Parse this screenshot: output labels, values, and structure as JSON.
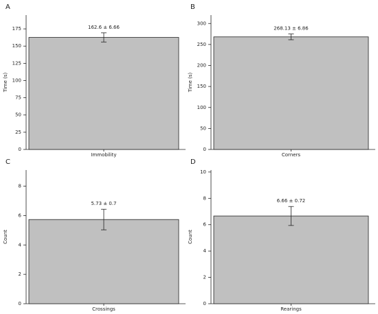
{
  "chart_data": [
    {
      "type": "bar",
      "panel": "A",
      "ylabel": "Time (s)",
      "categories": [
        "Immobility"
      ],
      "values": [
        162.6
      ],
      "error": [
        6.66
      ],
      "value_labels": [
        "162.6 ± 6.66"
      ],
      "color": "#c0c0c0",
      "ylim": [
        0,
        195
      ],
      "yticks": [
        0,
        25,
        50,
        75,
        100,
        125,
        150,
        175
      ]
    },
    {
      "type": "bar",
      "panel": "B",
      "ylabel": "Time (s)",
      "categories": [
        "Corners"
      ],
      "values": [
        268.13
      ],
      "error": [
        6.86
      ],
      "value_labels": [
        "268.13 ± 6.86"
      ],
      "color": "#c0c0c0",
      "ylim": [
        0,
        320
      ],
      "yticks": [
        0,
        50,
        100,
        150,
        200,
        250,
        300
      ]
    },
    {
      "type": "bar",
      "panel": "C",
      "ylabel": "Count",
      "categories": [
        "Crossings"
      ],
      "values": [
        5.73
      ],
      "error": [
        0.7
      ],
      "value_labels": [
        "5.73 ± 0.7"
      ],
      "color": "#c0c0c0",
      "ylim": [
        0,
        9.1
      ],
      "yticks": [
        0,
        2,
        4,
        6,
        8
      ]
    },
    {
      "type": "bar",
      "panel": "D",
      "ylabel": "Count",
      "categories": [
        "Rearings"
      ],
      "values": [
        6.66
      ],
      "error": [
        0.72
      ],
      "value_labels": [
        "6.66 ± 0.72"
      ],
      "color": "#c0c0c0",
      "ylim": [
        0,
        10.15
      ],
      "yticks": [
        0,
        2,
        4,
        6,
        8,
        10
      ]
    }
  ]
}
